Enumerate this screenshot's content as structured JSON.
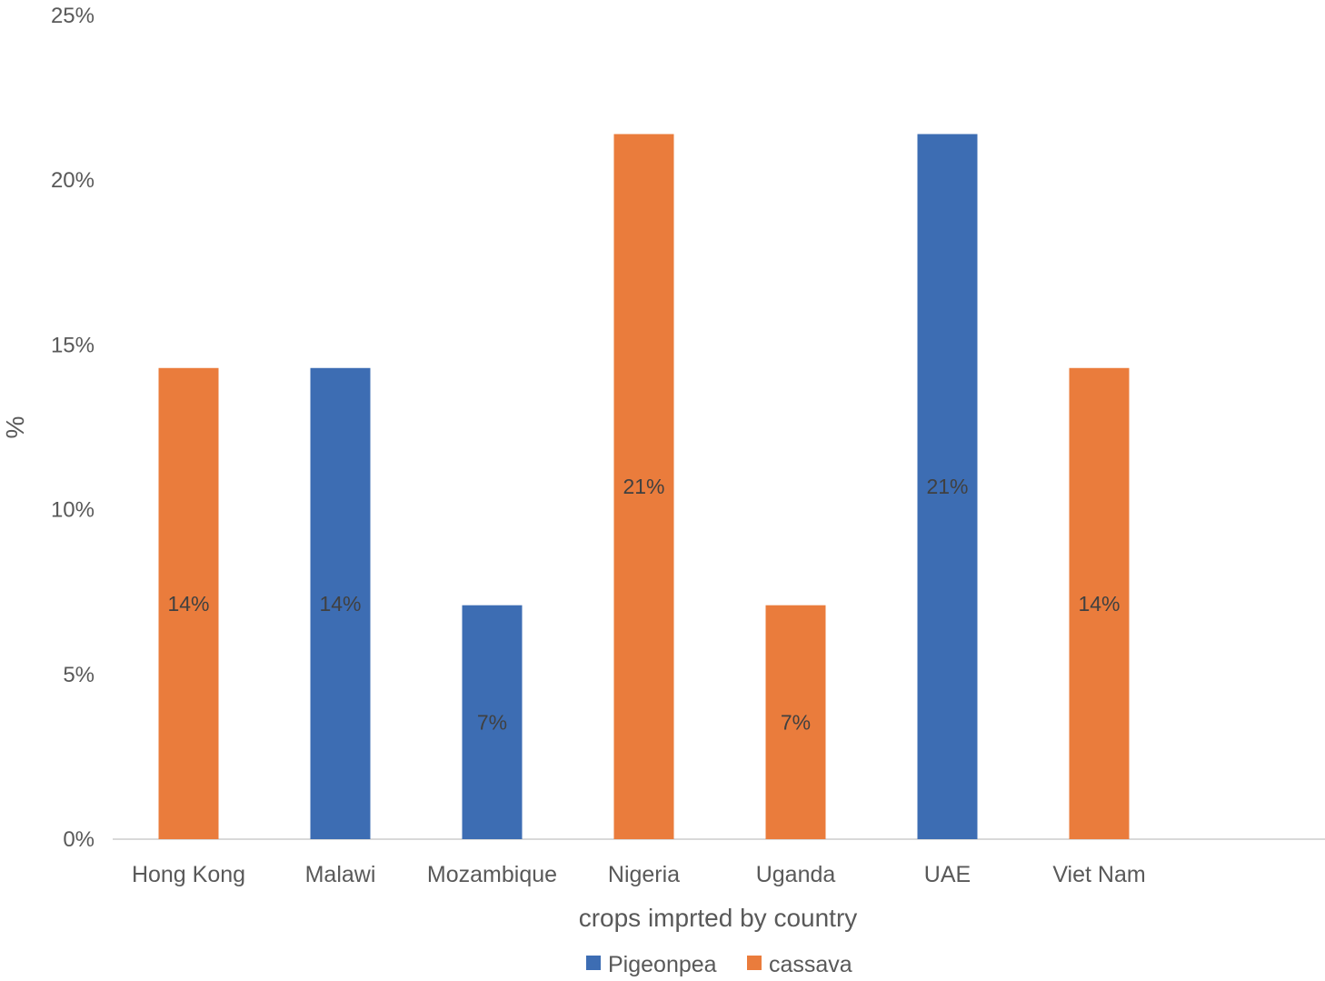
{
  "chart_data": {
    "type": "bar",
    "title": "",
    "xlabel": "crops imprted by country",
    "ylabel": "%",
    "ylim": [
      0,
      25
    ],
    "yticks": [
      "0%",
      "5%",
      "10%",
      "15%",
      "20%",
      "25%"
    ],
    "grid": false,
    "legend_position": "bottom",
    "categories": [
      "Hong Kong",
      "Malawi",
      "Mozambique",
      "Nigeria",
      "Uganda",
      "UAE",
      "Viet Nam"
    ],
    "series": [
      {
        "name": "Pigeonpea",
        "color": "#3D6DB3",
        "values": [
          null,
          14.3,
          7.1,
          null,
          null,
          21.4,
          null
        ]
      },
      {
        "name": "cassava",
        "color": "#EA7C3C",
        "values": [
          14.3,
          null,
          null,
          21.4,
          7.1,
          null,
          14.3
        ]
      }
    ],
    "data_labels": [
      "14%",
      "14%",
      "7%",
      "21%",
      "7%",
      "21%",
      "14%"
    ]
  }
}
